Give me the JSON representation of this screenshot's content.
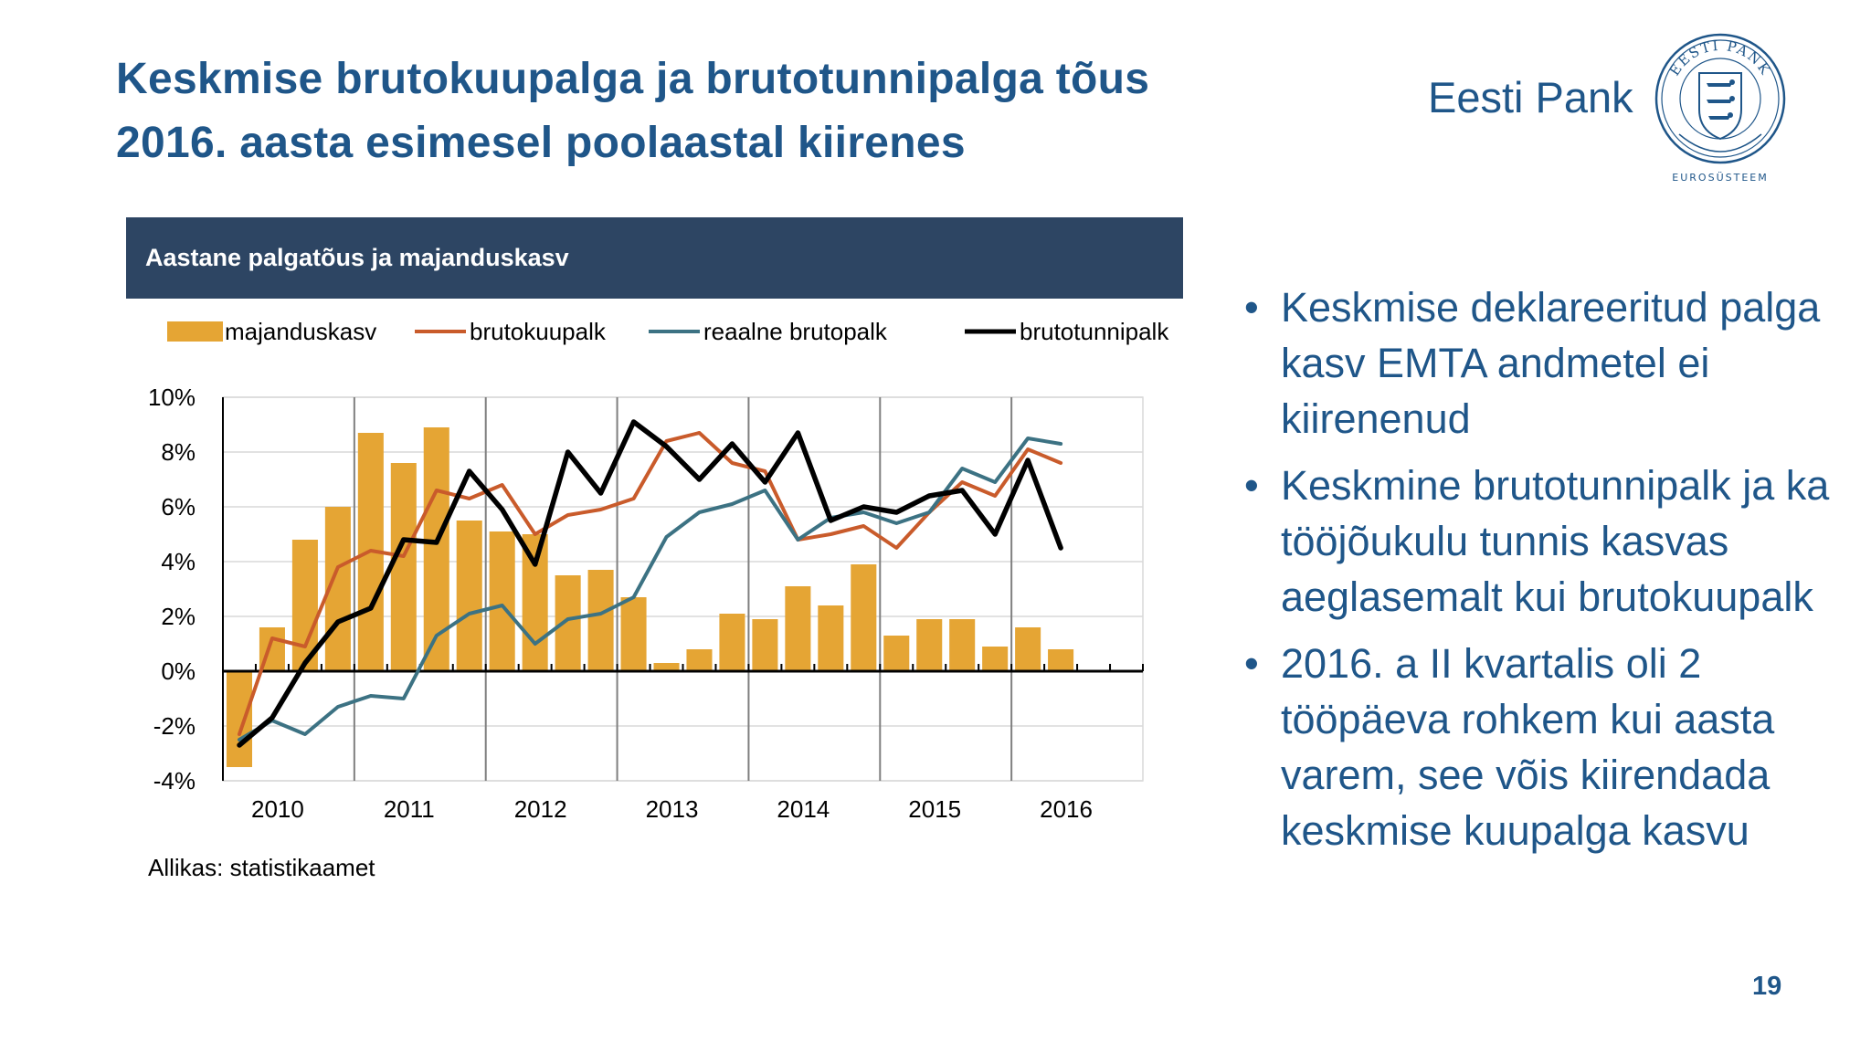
{
  "slide": {
    "title_line1": "Keskmise brutokuupalga ja brutotunnipalga tõus",
    "title_line2": "2016. aasta esimesel poolaastal  kiirenes",
    "brand": "Eesti Pank",
    "seal_text_top": "EESTI PANK",
    "seal_text_bottom": "EUROSÜSTEEM",
    "page_number": "19",
    "bullet_symbol": "•",
    "bullets": [
      "Keskmise deklareeritud palga kasv EMTA andmetel ei kiirenenud",
      "Keskmine brutotunnipalk ja ka tööjõukulu tunnis kasvas aeglasemalt kui brutokuupalk",
      "2016. a II kvartalis oli 2 tööpäeva rohkem kui aasta varem, see võis kiirendada keskmise kuupalga kasvu"
    ]
  },
  "colors": {
    "title": "#1f5689",
    "header_bg": "#2d4563",
    "bar": "#e5a534",
    "brutokuupalk": "#c95b2b",
    "reaalne_brutopalk": "#3c7283",
    "brutotunnipalk": "#000000",
    "grid": "#d9d9d9",
    "year_separator": "#7f7f7f"
  },
  "chart_data": {
    "type": "bar",
    "title": "Aastane palgatõus ja majanduskasv",
    "source": "Allikas: statistikaamet",
    "quarters": [
      "2010Q1",
      "2010Q2",
      "2010Q3",
      "2010Q4",
      "2011Q1",
      "2011Q2",
      "2011Q3",
      "2011Q4",
      "2012Q1",
      "2012Q2",
      "2012Q3",
      "2012Q4",
      "2013Q1",
      "2013Q2",
      "2013Q3",
      "2013Q4",
      "2014Q1",
      "2014Q2",
      "2014Q3",
      "2014Q4",
      "2015Q1",
      "2015Q2",
      "2015Q3",
      "2015Q4",
      "2016Q1",
      "2016Q2"
    ],
    "x_tick_labels": [
      "2010",
      "2011",
      "2012",
      "2013",
      "2014",
      "2015",
      "2016"
    ],
    "y_tick_labels": [
      "10%",
      "8%",
      "6%",
      "4%",
      "2%",
      "0%",
      "-2%",
      "-4%"
    ],
    "ylim": [
      -4,
      10
    ],
    "y_unit": "%",
    "grid": true,
    "legend_position": "top",
    "series": [
      {
        "name": "majanduskasv",
        "kind": "bar",
        "color_key": "bar",
        "values": [
          -3.5,
          1.6,
          4.8,
          6.0,
          8.7,
          7.6,
          8.9,
          5.5,
          5.1,
          5.0,
          3.5,
          3.7,
          2.7,
          0.3,
          0.8,
          2.1,
          1.9,
          3.1,
          2.4,
          3.9,
          1.3,
          1.9,
          1.9,
          0.9,
          1.6,
          0.8
        ]
      },
      {
        "name": "brutokuupalk",
        "kind": "line",
        "color_key": "brutokuupalk",
        "values": [
          -2.3,
          1.2,
          0.9,
          3.8,
          4.4,
          4.2,
          6.6,
          6.3,
          6.8,
          5.0,
          5.7,
          5.9,
          6.3,
          8.4,
          8.7,
          7.6,
          7.3,
          4.8,
          5.0,
          5.3,
          4.5,
          5.8,
          6.9,
          6.4,
          8.1,
          7.6
        ]
      },
      {
        "name": "reaalne brutopalk",
        "kind": "line",
        "color_key": "reaalne_brutopalk",
        "values": [
          -2.5,
          -1.8,
          -2.3,
          -1.3,
          -0.9,
          -1.0,
          1.3,
          2.1,
          2.4,
          1.0,
          1.9,
          2.1,
          2.7,
          4.9,
          5.8,
          6.1,
          6.6,
          4.8,
          5.6,
          5.8,
          5.4,
          5.8,
          7.4,
          6.9,
          8.5,
          8.3
        ]
      },
      {
        "name": "brutotunnipalk",
        "kind": "line",
        "color_key": "brutotunnipalk",
        "values": [
          -2.7,
          -1.7,
          0.3,
          1.8,
          2.3,
          4.8,
          4.7,
          7.3,
          5.9,
          3.9,
          8.0,
          6.5,
          9.1,
          8.2,
          7.0,
          8.3,
          6.9,
          8.7,
          5.5,
          6.0,
          5.8,
          6.4,
          6.6,
          5.0,
          7.7,
          4.5
        ]
      }
    ]
  }
}
